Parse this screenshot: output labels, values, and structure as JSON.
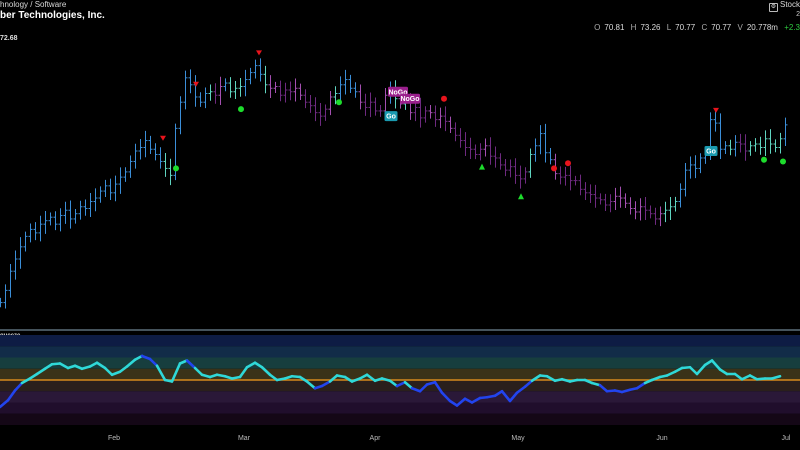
{
  "header": {
    "category": "hnology / Software",
    "company": "ber Technologies, Inc.",
    "stock_label": "Stock",
    "row2_right": "2"
  },
  "quote": {
    "open_k": "O",
    "open": "70.81",
    "high_k": "H",
    "high": "73.26",
    "low_k": "L",
    "low": "70.77",
    "close_k": "C",
    "close": "70.77",
    "volume_k": "V",
    "volume": "20.778m",
    "change": "+2.3"
  },
  "last_price_tag": "72.68",
  "oscillator_label": "queeze",
  "colors": {
    "strong_up": "#3b8ed8",
    "up": "#5fd4c0",
    "down": "#a34fb0",
    "strong_down": "#6e2a80",
    "osc_line_high": "#2fd8d8",
    "osc_line_low": "#2244ee",
    "zero_line": "#d68a1d"
  },
  "chart_data": {
    "type": "ohlc",
    "x_tick_labels": [
      "Feb",
      "Mar",
      "Apr",
      "May",
      "Jun",
      "Jul"
    ],
    "price_points": [
      [
        0,
        62.5
      ],
      [
        5,
        63.2
      ],
      [
        10,
        64.3
      ],
      [
        15,
        65.0
      ],
      [
        20,
        65.7
      ],
      [
        25,
        66.3
      ],
      [
        30,
        66.7
      ],
      [
        35,
        66.5
      ],
      [
        40,
        67.0
      ],
      [
        45,
        67.2
      ],
      [
        50,
        67.4
      ],
      [
        55,
        67.0
      ],
      [
        60,
        67.5
      ],
      [
        65,
        67.8
      ],
      [
        70,
        67.3
      ],
      [
        75,
        67.6
      ],
      [
        80,
        68.0
      ],
      [
        85,
        67.9
      ],
      [
        90,
        68.3
      ],
      [
        95,
        68.5
      ],
      [
        100,
        68.9
      ],
      [
        105,
        69.2
      ],
      [
        110,
        68.8
      ],
      [
        115,
        69.3
      ],
      [
        120,
        69.7
      ],
      [
        125,
        70.0
      ],
      [
        130,
        70.6
      ],
      [
        135,
        71.2
      ],
      [
        140,
        71.4
      ],
      [
        145,
        71.8
      ],
      [
        150,
        71.3
      ],
      [
        155,
        71.0
      ],
      [
        160,
        70.6
      ],
      [
        165,
        70.2
      ],
      [
        170,
        69.8
      ],
      [
        175,
        72.5
      ],
      [
        180,
        74.0
      ],
      [
        185,
        75.4
      ],
      [
        190,
        75.0
      ],
      [
        195,
        74.3
      ],
      [
        200,
        74.0
      ],
      [
        205,
        74.5
      ],
      [
        210,
        74.6
      ],
      [
        215,
        74.4
      ],
      [
        220,
        74.9
      ],
      [
        225,
        75.1
      ],
      [
        230,
        74.6
      ],
      [
        235,
        74.8
      ],
      [
        240,
        74.9
      ],
      [
        245,
        75.3
      ],
      [
        250,
        75.7
      ],
      [
        255,
        76.1
      ],
      [
        260,
        75.6
      ],
      [
        265,
        75.0
      ],
      [
        270,
        74.8
      ],
      [
        275,
        74.9
      ],
      [
        280,
        74.4
      ],
      [
        285,
        74.7
      ],
      [
        290,
        74.6
      ],
      [
        295,
        74.8
      ],
      [
        300,
        74.4
      ],
      [
        305,
        74.0
      ],
      [
        310,
        73.8
      ],
      [
        315,
        73.4
      ],
      [
        320,
        73.2
      ],
      [
        325,
        73.6
      ],
      [
        330,
        74.3
      ],
      [
        335,
        74.5
      ],
      [
        340,
        75.0
      ],
      [
        345,
        75.3
      ],
      [
        350,
        74.8
      ],
      [
        355,
        74.6
      ],
      [
        360,
        74.0
      ],
      [
        365,
        73.7
      ],
      [
        370,
        74.0
      ],
      [
        375,
        73.5
      ],
      [
        380,
        73.5
      ],
      [
        385,
        74.4
      ],
      [
        390,
        74.7
      ],
      [
        395,
        74.2
      ],
      [
        400,
        73.9
      ],
      [
        405,
        74.1
      ],
      [
        410,
        73.4
      ],
      [
        415,
        73.7
      ],
      [
        420,
        73.1
      ],
      [
        425,
        73.5
      ],
      [
        430,
        73.4
      ],
      [
        435,
        73.0
      ],
      [
        440,
        73.2
      ],
      [
        445,
        72.9
      ],
      [
        450,
        72.5
      ],
      [
        455,
        72.1
      ],
      [
        460,
        71.8
      ],
      [
        465,
        71.4
      ],
      [
        470,
        71.3
      ],
      [
        475,
        71.0
      ],
      [
        480,
        71.3
      ],
      [
        485,
        71.5
      ],
      [
        490,
        70.9
      ],
      [
        495,
        70.8
      ],
      [
        500,
        70.4
      ],
      [
        505,
        70.1
      ],
      [
        510,
        70.3
      ],
      [
        515,
        69.8
      ],
      [
        520,
        69.6
      ],
      [
        525,
        70.0
      ],
      [
        530,
        71.0
      ],
      [
        535,
        71.5
      ],
      [
        540,
        72.2
      ],
      [
        545,
        71.1
      ],
      [
        550,
        70.7
      ],
      [
        555,
        69.9
      ],
      [
        560,
        69.7
      ],
      [
        565,
        69.8
      ],
      [
        570,
        69.5
      ],
      [
        575,
        69.5
      ],
      [
        580,
        69.0
      ],
      [
        585,
        68.8
      ],
      [
        590,
        68.7
      ],
      [
        595,
        68.5
      ],
      [
        600,
        68.4
      ],
      [
        605,
        68.1
      ],
      [
        610,
        68.3
      ],
      [
        615,
        68.6
      ],
      [
        620,
        68.5
      ],
      [
        625,
        68.2
      ],
      [
        630,
        67.9
      ],
      [
        635,
        67.7
      ],
      [
        640,
        68.0
      ],
      [
        645,
        67.8
      ],
      [
        650,
        67.6
      ],
      [
        655,
        67.3
      ],
      [
        660,
        67.6
      ],
      [
        665,
        67.8
      ],
      [
        670,
        68.0
      ],
      [
        675,
        68.3
      ],
      [
        680,
        69.0
      ],
      [
        685,
        70.1
      ],
      [
        690,
        70.4
      ],
      [
        695,
        70.2
      ],
      [
        700,
        70.8
      ],
      [
        705,
        71.1
      ],
      [
        710,
        73.0
      ],
      [
        715,
        72.8
      ],
      [
        720,
        71.3
      ],
      [
        725,
        71.5
      ],
      [
        730,
        71.3
      ],
      [
        735,
        71.7
      ],
      [
        740,
        71.6
      ],
      [
        745,
        71.2
      ],
      [
        750,
        71.5
      ],
      [
        755,
        71.6
      ],
      [
        760,
        71.4
      ],
      [
        765,
        71.9
      ],
      [
        770,
        71.6
      ],
      [
        775,
        71.4
      ],
      [
        780,
        71.9
      ],
      [
        785,
        72.7
      ]
    ],
    "signals": [
      {
        "type": "arrow_down",
        "x": 163,
        "y": 71.9
      },
      {
        "type": "dot_up",
        "x": 176,
        "y": 70.2
      },
      {
        "type": "arrow_down",
        "x": 196,
        "y": 75.0
      },
      {
        "type": "dot_up",
        "x": 241,
        "y": 73.6
      },
      {
        "type": "arrow_down",
        "x": 259,
        "y": 76.8
      },
      {
        "type": "dot_up",
        "x": 339,
        "y": 74.0
      },
      {
        "type": "label_nogo",
        "label": "NoGo",
        "x": 398,
        "y": 74.6
      },
      {
        "type": "label_nogo",
        "label": "NoGo",
        "x": 410,
        "y": 74.2
      },
      {
        "type": "label_go",
        "label": "Go",
        "x": 391,
        "y": 73.2
      },
      {
        "type": "dot_down",
        "x": 444,
        "y": 74.2
      },
      {
        "type": "triangle_up",
        "x": 482,
        "y": 70.3
      },
      {
        "type": "triangle_up",
        "x": 521,
        "y": 68.6
      },
      {
        "type": "dot_down",
        "x": 554,
        "y": 70.2
      },
      {
        "type": "dot_down",
        "x": 568,
        "y": 70.5
      },
      {
        "type": "arrow_down",
        "x": 716,
        "y": 73.5
      },
      {
        "type": "label_go",
        "label": "Go",
        "x": 711,
        "y": 71.2
      },
      {
        "type": "dot_up",
        "x": 764,
        "y": 70.7
      },
      {
        "type": "dot_up",
        "x": 783,
        "y": 70.6
      }
    ],
    "oscillator_points": [
      [
        0,
        -3.6
      ],
      [
        8,
        -2.7
      ],
      [
        15,
        -1.4
      ],
      [
        22,
        -0.4
      ],
      [
        30,
        0.2
      ],
      [
        37,
        0.8
      ],
      [
        45,
        1.5
      ],
      [
        52,
        2.1
      ],
      [
        60,
        2.2
      ],
      [
        68,
        1.6
      ],
      [
        75,
        1.9
      ],
      [
        82,
        1.5
      ],
      [
        90,
        1.8
      ],
      [
        97,
        2.3
      ],
      [
        105,
        1.6
      ],
      [
        112,
        0.7
      ],
      [
        120,
        1.1
      ],
      [
        127,
        1.8
      ],
      [
        135,
        2.7
      ],
      [
        142,
        3.2
      ],
      [
        150,
        2.8
      ],
      [
        157,
        1.9
      ],
      [
        165,
        0.0
      ],
      [
        172,
        -0.2
      ],
      [
        180,
        2.2
      ],
      [
        187,
        2.6
      ],
      [
        195,
        1.6
      ],
      [
        202,
        0.7
      ],
      [
        210,
        0.4
      ],
      [
        217,
        0.7
      ],
      [
        225,
        0.5
      ],
      [
        232,
        0.2
      ],
      [
        240,
        0.4
      ],
      [
        247,
        1.7
      ],
      [
        255,
        2.3
      ],
      [
        262,
        1.7
      ],
      [
        270,
        0.7
      ],
      [
        277,
        0.0
      ],
      [
        285,
        0.2
      ],
      [
        292,
        0.5
      ],
      [
        300,
        0.4
      ],
      [
        307,
        -0.2
      ],
      [
        315,
        -1.1
      ],
      [
        322,
        -0.8
      ],
      [
        330,
        -0.2
      ],
      [
        337,
        0.6
      ],
      [
        345,
        0.4
      ],
      [
        352,
        -0.2
      ],
      [
        360,
        0.2
      ],
      [
        367,
        0.7
      ],
      [
        375,
        -0.1
      ],
      [
        382,
        0.2
      ],
      [
        390,
        -0.1
      ],
      [
        397,
        -0.8
      ],
      [
        405,
        -0.3
      ],
      [
        412,
        -1.1
      ],
      [
        420,
        -1.5
      ],
      [
        427,
        -0.6
      ],
      [
        435,
        -0.3
      ],
      [
        442,
        -1.7
      ],
      [
        450,
        -2.8
      ],
      [
        457,
        -3.4
      ],
      [
        465,
        -2.5
      ],
      [
        472,
        -3.0
      ],
      [
        480,
        -2.4
      ],
      [
        487,
        -2.3
      ],
      [
        495,
        -2.1
      ],
      [
        502,
        -1.5
      ],
      [
        510,
        -2.8
      ],
      [
        517,
        -1.7
      ],
      [
        525,
        -0.9
      ],
      [
        532,
        -0.1
      ],
      [
        540,
        0.6
      ],
      [
        547,
        0.5
      ],
      [
        555,
        -0.1
      ],
      [
        562,
        0.1
      ],
      [
        570,
        -0.2
      ],
      [
        577,
        0.0
      ],
      [
        585,
        0.0
      ],
      [
        592,
        -0.4
      ],
      [
        600,
        -0.7
      ],
      [
        607,
        -1.5
      ],
      [
        615,
        -1.4
      ],
      [
        622,
        -1.6
      ],
      [
        630,
        -1.3
      ],
      [
        637,
        -1.1
      ],
      [
        645,
        -0.4
      ],
      [
        652,
        0.0
      ],
      [
        660,
        0.4
      ],
      [
        667,
        0.6
      ],
      [
        675,
        1.1
      ],
      [
        682,
        1.6
      ],
      [
        690,
        1.7
      ],
      [
        697,
        0.8
      ],
      [
        705,
        2.0
      ],
      [
        712,
        2.6
      ],
      [
        720,
        1.4
      ],
      [
        727,
        0.8
      ],
      [
        735,
        0.8
      ],
      [
        742,
        0.1
      ],
      [
        750,
        0.6
      ],
      [
        757,
        0.1
      ],
      [
        765,
        0.2
      ],
      [
        772,
        0.2
      ],
      [
        780,
        0.5
      ]
    ],
    "oscillator_range": [
      -6,
      6
    ],
    "price_range": [
      61.5,
      77.8
    ]
  }
}
